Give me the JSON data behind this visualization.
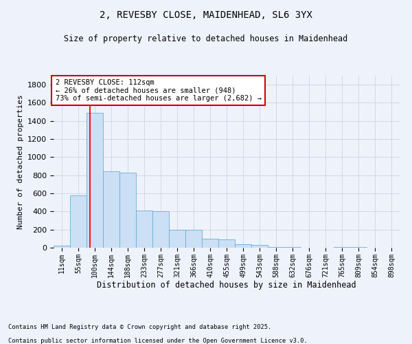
{
  "title1": "2, REVESBY CLOSE, MAIDENHEAD, SL6 3YX",
  "title2": "Size of property relative to detached houses in Maidenhead",
  "xlabel": "Distribution of detached houses by size in Maidenhead",
  "ylabel": "Number of detached properties",
  "categories": [
    "11sqm",
    "55sqm",
    "100sqm",
    "144sqm",
    "188sqm",
    "233sqm",
    "277sqm",
    "321sqm",
    "366sqm",
    "410sqm",
    "455sqm",
    "499sqm",
    "543sqm",
    "588sqm",
    "632sqm",
    "676sqm",
    "721sqm",
    "765sqm",
    "809sqm",
    "854sqm",
    "898sqm"
  ],
  "values": [
    20,
    575,
    1490,
    840,
    830,
    410,
    405,
    200,
    195,
    100,
    95,
    35,
    30,
    5,
    5,
    0,
    0,
    5,
    5,
    0,
    0
  ],
  "bar_color": "#cce0f5",
  "bar_edge_color": "#6aaed6",
  "grid_color": "#d0d8e8",
  "bg_color": "#eef2fb",
  "annotation_text": "2 REVESBY CLOSE: 112sqm\n← 26% of detached houses are smaller (948)\n73% of semi-detached houses are larger (2,682) →",
  "annotation_box_color": "#ffffff",
  "annotation_box_edge": "#cc0000",
  "red_line_x": 1.7,
  "ylim": [
    0,
    1900
  ],
  "yticks": [
    0,
    200,
    400,
    600,
    800,
    1000,
    1200,
    1400,
    1600,
    1800
  ],
  "footer1": "Contains HM Land Registry data © Crown copyright and database right 2025.",
  "footer2": "Contains public sector information licensed under the Open Government Licence v3.0."
}
